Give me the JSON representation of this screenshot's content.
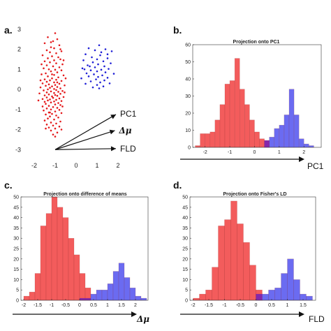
{
  "colors": {
    "red": "#f24a4a",
    "blue": "#5b5bef",
    "overlap": "#8a1fa0",
    "dot_red": "#e41a1c",
    "dot_blue": "#1f1fd6"
  },
  "chart_data": [
    {
      "id": "a",
      "panel_label": "a.",
      "type": "scatter",
      "title": "",
      "xlim": [
        -2.5,
        2.5
      ],
      "ylim": [
        -3.2,
        3.2
      ],
      "xticks": [
        "-2",
        "-1",
        "0",
        "1",
        "2"
      ],
      "yticks": [
        "-3",
        "-2",
        "-1",
        "0",
        "1",
        "2",
        "3"
      ],
      "arrows": [
        {
          "label": "PC1",
          "from": [
            -1,
            -3
          ],
          "to": [
            1.9,
            -1.25
          ]
        },
        {
          "label": "Δμ",
          "from": [
            -1,
            -3
          ],
          "to": [
            1.85,
            -2.05
          ]
        },
        {
          "label": "FLD",
          "from": [
            -1,
            -3
          ],
          "to": [
            1.9,
            -2.95
          ]
        }
      ],
      "series": [
        {
          "color_key": "dot_red",
          "points": [
            [
              -1.0,
              2.8
            ],
            [
              -1.35,
              2.6
            ],
            [
              -0.9,
              2.5
            ],
            [
              -1.1,
              2.4
            ],
            [
              -1.5,
              2.3
            ],
            [
              -0.8,
              2.2
            ],
            [
              -1.2,
              2.1
            ],
            [
              -1.05,
              2.05
            ],
            [
              -1.4,
              1.95
            ],
            [
              -0.7,
              1.9
            ],
            [
              -1.25,
              1.85
            ],
            [
              -0.95,
              1.8
            ],
            [
              -1.6,
              1.7
            ],
            [
              -1.15,
              1.65
            ],
            [
              -0.85,
              1.6
            ],
            [
              -1.35,
              1.55
            ],
            [
              -0.75,
              1.5
            ],
            [
              -1.05,
              1.45
            ],
            [
              -1.5,
              1.4
            ],
            [
              -1.25,
              1.35
            ],
            [
              -0.95,
              1.3
            ],
            [
              -0.65,
              1.25
            ],
            [
              -1.4,
              1.2
            ],
            [
              -1.1,
              1.15
            ],
            [
              -0.8,
              1.1
            ],
            [
              -1.55,
              1.05
            ],
            [
              -1.3,
              1.0
            ],
            [
              -1.0,
              0.98
            ],
            [
              -0.7,
              0.95
            ],
            [
              -1.2,
              0.9
            ],
            [
              -0.9,
              0.85
            ],
            [
              -1.45,
              0.8
            ],
            [
              -1.65,
              0.75
            ],
            [
              -1.05,
              0.72
            ],
            [
              -0.6,
              0.7
            ],
            [
              -1.35,
              0.65
            ],
            [
              -0.85,
              0.6
            ],
            [
              -1.15,
              0.55
            ],
            [
              -1.5,
              0.5
            ],
            [
              -0.95,
              0.48
            ],
            [
              -1.25,
              0.45
            ],
            [
              -0.7,
              0.42
            ],
            [
              -1.4,
              0.38
            ],
            [
              -1.05,
              0.35
            ],
            [
              -1.6,
              0.3
            ],
            [
              -0.8,
              0.28
            ],
            [
              -1.3,
              0.25
            ],
            [
              -1.0,
              0.22
            ],
            [
              -0.55,
              0.2
            ],
            [
              -1.45,
              0.18
            ],
            [
              -1.15,
              0.15
            ],
            [
              -0.9,
              0.12
            ],
            [
              -1.7,
              0.1
            ],
            [
              -1.25,
              0.08
            ],
            [
              -0.75,
              0.05
            ],
            [
              -1.05,
              0.02
            ],
            [
              -1.35,
              0.0
            ],
            [
              -0.95,
              -0.03
            ],
            [
              -1.55,
              -0.05
            ],
            [
              -0.65,
              -0.08
            ],
            [
              -1.2,
              -0.1
            ],
            [
              -0.85,
              -0.12
            ],
            [
              -1.4,
              -0.15
            ],
            [
              -1.05,
              -0.18
            ],
            [
              -1.75,
              -0.2
            ],
            [
              -0.75,
              -0.22
            ],
            [
              -1.3,
              -0.25
            ],
            [
              -1.0,
              -0.28
            ],
            [
              -1.5,
              -0.3
            ],
            [
              -0.9,
              -0.32
            ],
            [
              -1.15,
              -0.35
            ],
            [
              -0.6,
              -0.38
            ],
            [
              -1.4,
              -0.4
            ],
            [
              -1.1,
              -0.42
            ],
            [
              -0.8,
              -0.45
            ],
            [
              -1.6,
              -0.48
            ],
            [
              -1.25,
              -0.5
            ],
            [
              -0.95,
              -0.52
            ],
            [
              -1.35,
              -0.55
            ],
            [
              -0.7,
              -0.58
            ],
            [
              -1.05,
              -0.6
            ],
            [
              -1.5,
              -0.62
            ],
            [
              -1.2,
              -0.65
            ],
            [
              -0.85,
              -0.68
            ],
            [
              -1.45,
              -0.72
            ],
            [
              -1.0,
              -0.75
            ],
            [
              -0.75,
              -0.78
            ],
            [
              -1.3,
              -0.82
            ],
            [
              -1.6,
              -0.85
            ],
            [
              -1.1,
              -0.88
            ],
            [
              -0.9,
              -0.92
            ],
            [
              -1.4,
              -0.95
            ],
            [
              -1.2,
              -1.0
            ],
            [
              -0.8,
              -1.02
            ],
            [
              -1.55,
              -1.05
            ],
            [
              -1.0,
              -1.1
            ],
            [
              -1.3,
              -1.15
            ],
            [
              -0.7,
              -1.18
            ],
            [
              -1.15,
              -1.22
            ],
            [
              -1.45,
              -1.25
            ],
            [
              -0.95,
              -1.3
            ],
            [
              -1.25,
              -1.35
            ],
            [
              -0.85,
              -1.4
            ],
            [
              -1.35,
              -1.45
            ],
            [
              -1.05,
              -1.5
            ],
            [
              -1.5,
              -1.55
            ],
            [
              -0.75,
              -1.6
            ],
            [
              -1.2,
              -1.65
            ],
            [
              -0.95,
              -1.7
            ],
            [
              -1.4,
              -1.75
            ],
            [
              -1.1,
              -1.8
            ],
            [
              -0.8,
              -1.85
            ],
            [
              -1.3,
              -1.9
            ],
            [
              -1.0,
              -1.95
            ],
            [
              -1.2,
              -2.05
            ],
            [
              -0.9,
              -2.15
            ],
            [
              -1.1,
              -2.25
            ],
            [
              -1.0,
              -2.35
            ],
            [
              -1.25,
              -1.15
            ],
            [
              -0.65,
              -0.85
            ],
            [
              -1.7,
              0.45
            ],
            [
              -0.5,
              0.55
            ],
            [
              -1.8,
              -0.55
            ],
            [
              -0.55,
              -0.15
            ],
            [
              -1.65,
              1.25
            ],
            [
              -0.6,
              1.45
            ],
            [
              -1.2,
              2.35
            ],
            [
              -0.75,
              2.0
            ],
            [
              -1.45,
              -1.95
            ],
            [
              -0.7,
              -2.0
            ],
            [
              -1.15,
              0.75
            ],
            [
              -0.9,
              0.35
            ]
          ]
        },
        {
          "color_key": "dot_blue",
          "points": [
            [
              1.1,
              2.2
            ],
            [
              0.6,
              2.05
            ],
            [
              1.4,
              2.0
            ],
            [
              0.9,
              1.95
            ],
            [
              1.7,
              1.9
            ],
            [
              0.45,
              1.75
            ],
            [
              1.15,
              1.7
            ],
            [
              0.75,
              1.6
            ],
            [
              1.5,
              1.55
            ],
            [
              1.0,
              1.5
            ],
            [
              0.35,
              1.45
            ],
            [
              1.3,
              1.4
            ],
            [
              0.8,
              1.35
            ],
            [
              1.65,
              1.3
            ],
            [
              1.05,
              1.25
            ],
            [
              0.55,
              1.2
            ],
            [
              1.35,
              1.15
            ],
            [
              0.9,
              1.1
            ],
            [
              0.3,
              1.05
            ],
            [
              1.55,
              1.02
            ],
            [
              1.2,
              0.98
            ],
            [
              0.7,
              0.95
            ],
            [
              1.0,
              0.9
            ],
            [
              1.4,
              0.85
            ],
            [
              0.5,
              0.8
            ],
            [
              1.8,
              0.78
            ],
            [
              0.85,
              0.75
            ],
            [
              1.25,
              0.7
            ],
            [
              0.6,
              0.65
            ],
            [
              1.05,
              0.62
            ],
            [
              1.5,
              0.58
            ],
            [
              0.25,
              0.55
            ],
            [
              0.95,
              0.5
            ],
            [
              1.35,
              0.45
            ],
            [
              0.7,
              0.4
            ],
            [
              1.15,
              0.35
            ],
            [
              1.6,
              0.3
            ],
            [
              0.45,
              0.28
            ],
            [
              1.0,
              0.22
            ],
            [
              1.3,
              0.15
            ],
            [
              0.8,
              0.1
            ],
            [
              1.1,
              0.05
            ],
            [
              1.5,
              1.75
            ],
            [
              0.65,
              1.15
            ],
            [
              1.2,
              1.85
            ],
            [
              0.4,
              1.0
            ]
          ]
        }
      ]
    },
    {
      "id": "b",
      "panel_label": "b.",
      "type": "bar",
      "title": "Projection onto PC1",
      "xlabel": "PC1",
      "xlim": [
        -2.5,
        2.7
      ],
      "ylim": [
        0,
        60
      ],
      "xticks": [
        "-2",
        "-1",
        "0",
        "1",
        "2"
      ],
      "yticks": [
        "0",
        "10",
        "20",
        "30",
        "40",
        "50",
        "60"
      ],
      "bin_width": 0.2,
      "series": [
        {
          "color_key": "red",
          "bin_starts": [
            -2.4,
            -2.2,
            -2.0,
            -1.8,
            -1.6,
            -1.4,
            -1.2,
            -1.0,
            -0.8,
            -0.6,
            -0.4,
            -0.2,
            0.0,
            0.2,
            0.4
          ],
          "values": [
            1,
            8,
            8,
            9,
            16,
            25,
            37,
            39,
            52,
            34,
            25,
            16,
            9,
            5,
            4
          ]
        },
        {
          "color_key": "blue",
          "bin_starts": [
            0.4,
            0.6,
            0.8,
            1.0,
            1.2,
            1.4,
            1.6,
            1.8,
            2.0,
            2.2
          ],
          "values": [
            4,
            6,
            11,
            13,
            19,
            34,
            19,
            5,
            2,
            1
          ]
        }
      ]
    },
    {
      "id": "c",
      "panel_label": "c.",
      "type": "bar",
      "title": "Projection onto difference of means",
      "xlabel": "Δμ",
      "xlim": [
        -2.1,
        2.45
      ],
      "ylim": [
        0,
        50
      ],
      "xticks": [
        "-2",
        "-1.5",
        "-1",
        "-0.5",
        "0",
        "0.5",
        "1",
        "1.5",
        "2"
      ],
      "yticks": [
        "0",
        "5",
        "10",
        "15",
        "20",
        "25",
        "30",
        "35",
        "40",
        "45",
        "50"
      ],
      "bin_width": 0.2,
      "series": [
        {
          "color_key": "red",
          "bin_starts": [
            -2.0,
            -1.8,
            -1.6,
            -1.4,
            -1.2,
            -1.0,
            -0.8,
            -0.6,
            -0.4,
            -0.2,
            0.0,
            0.2
          ],
          "values": [
            2,
            4,
            13,
            36,
            42,
            50,
            45,
            40,
            30,
            22,
            13,
            6
          ]
        },
        {
          "color_key": "blue",
          "bin_starts": [
            0.0,
            0.2,
            0.4,
            0.6,
            0.8,
            1.0,
            1.2,
            1.4,
            1.6,
            1.8,
            2.0,
            2.2
          ],
          "values": [
            1,
            1,
            3,
            5,
            5,
            8,
            14,
            18,
            11,
            6,
            2,
            1
          ]
        }
      ]
    },
    {
      "id": "d",
      "panel_label": "d.",
      "type": "bar",
      "title": "Projection onto Fisher's LD",
      "xlabel": "FLD",
      "xlim": [
        -2.1,
        1.9
      ],
      "ylim": [
        0,
        50
      ],
      "xticks": [
        "-2",
        "-1.5",
        "-1",
        "-0.5",
        "0",
        "0.5",
        "1",
        "1.5"
      ],
      "yticks": [
        "0",
        "5",
        "10",
        "15",
        "20",
        "25",
        "30",
        "35",
        "40",
        "45",
        "50"
      ],
      "bin_width": 0.2,
      "series": [
        {
          "color_key": "red",
          "bin_starts": [
            -1.8,
            -1.6,
            -1.4,
            -1.2,
            -1.0,
            -0.8,
            -0.6,
            -0.4,
            -0.2
          ],
          "values": [
            3,
            5,
            16,
            36,
            39,
            48,
            37,
            28,
            17
          ]
        },
        {
          "color_key": "red",
          "bin_starts": [
            -2.0,
            -0.0
          ],
          "values": [
            1,
            5
          ]
        },
        {
          "color_key": "blue",
          "bin_starts": [
            0.0,
            0.2,
            0.4,
            0.6,
            0.8,
            1.0,
            1.2,
            1.4,
            1.6
          ],
          "values": [
            3,
            3,
            5,
            6,
            13,
            20,
            10,
            3,
            2
          ]
        }
      ]
    }
  ]
}
